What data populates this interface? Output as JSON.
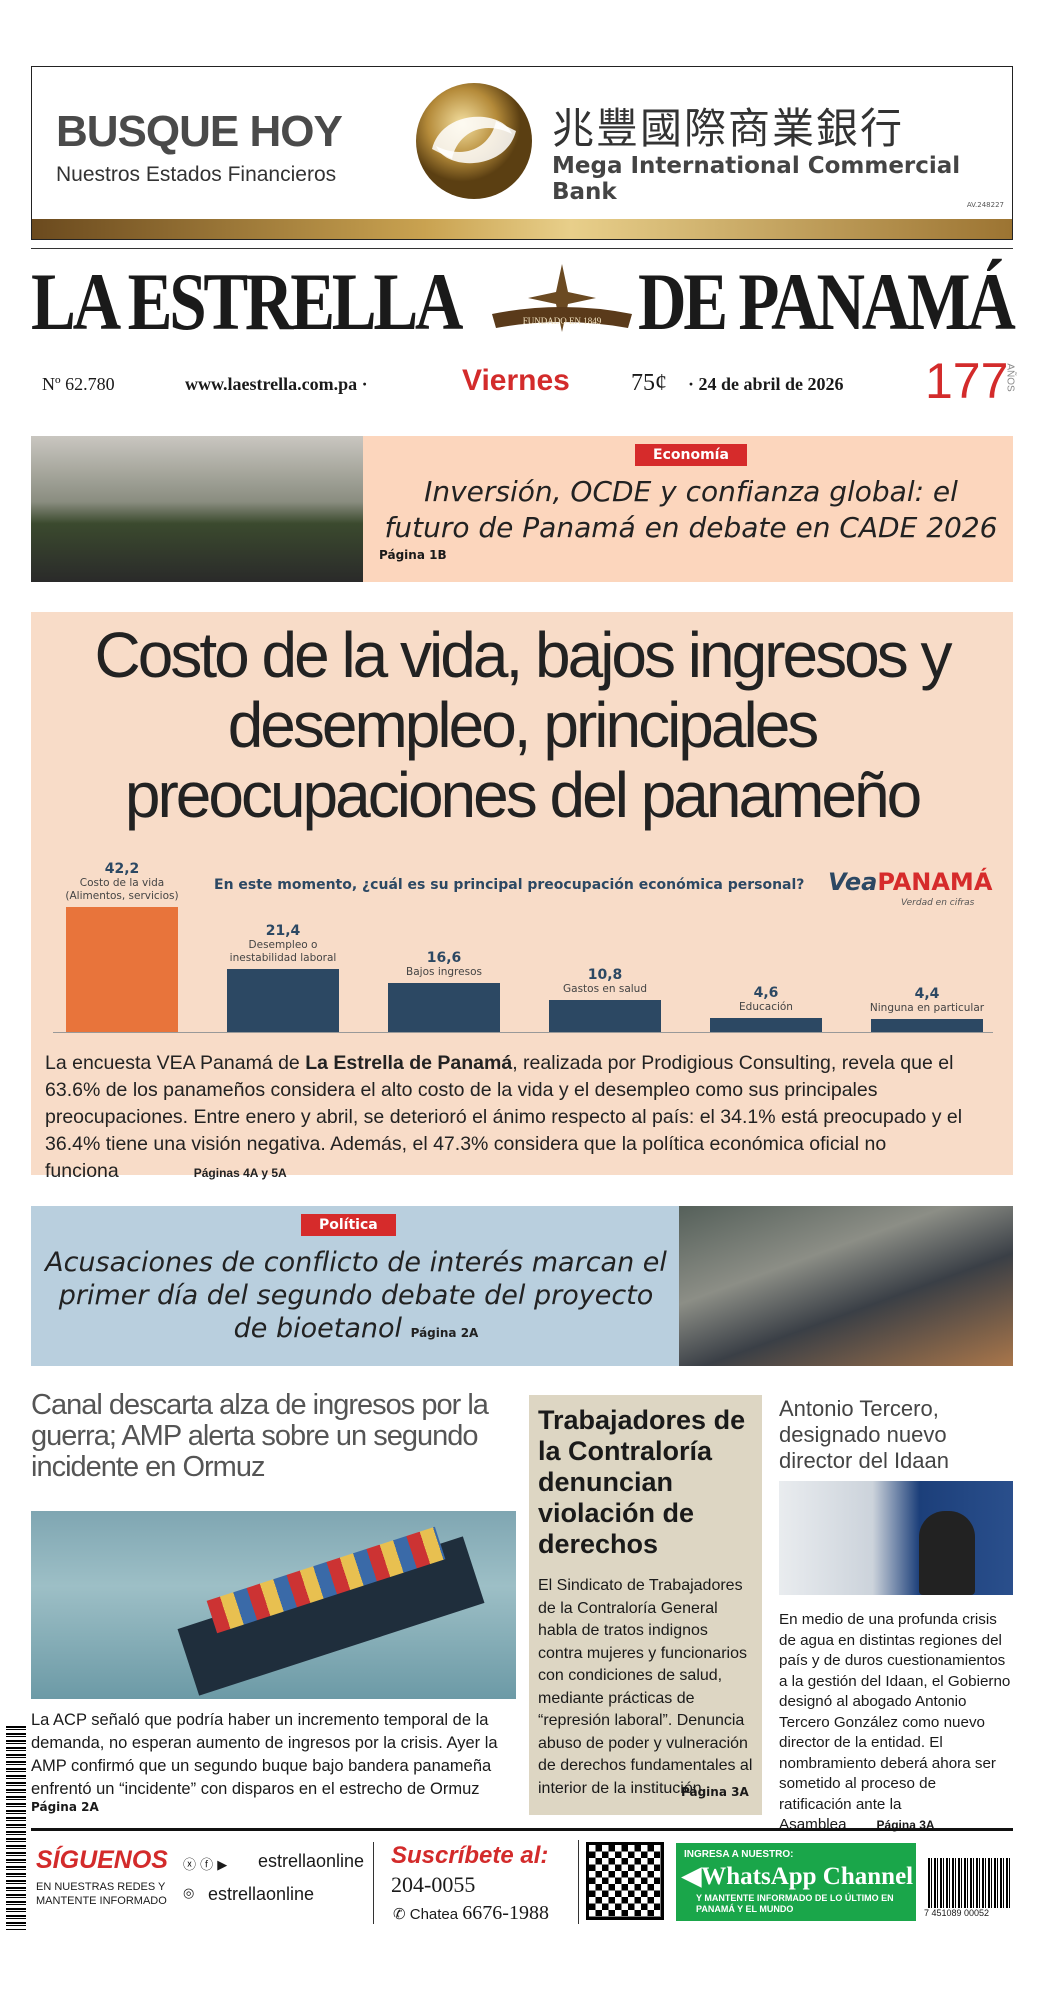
{
  "ad": {
    "title": "BUSQUE HOY",
    "subtitle": "Nuestros Estados Financieros",
    "bank_chinese": "兆豐國際商業銀行",
    "bank_name": "Mega International Commercial Bank",
    "code": "AV.248227"
  },
  "masthead": {
    "left": "LA ESTRELLA",
    "emblem": "FUNDADO EN 1849",
    "right": "DE PANAMÁ"
  },
  "info": {
    "number": "Nº 62.780",
    "website": "www.laestrella.com.pa ·",
    "day": "Viernes",
    "price": "75¢",
    "date": "· 24 de abril de 2026",
    "anniversary": "177",
    "anniversary_unit": "AÑOS"
  },
  "featured": {
    "tag": "Economía",
    "headline": "Inversión, OCDE y confianza global: el futuro de Panamá en debate en CADE 2026",
    "page": "Página 1B"
  },
  "main_story": {
    "headline_lines": [
      "Costo de la vida, bajos ingresos y",
      "desempleo, principales",
      "preocupaciones del panameño"
    ],
    "body": [
      "La encuesta VEA Panamá de ",
      "La Estrella de Panamá",
      ", realizada por Prodigious Consulting, revela que el 63.6% de los panameños considera el alto costo de la vida y el desempleo como sus principales preocupaciones. Entre enero y abril, se deterioró el ánimo respecto al país: el 34.1% está preocupado y el 36.4% tiene una visión negativa. Además, el 47.3% considera que la política económica oficial no funciona"
    ],
    "page": "Páginas 4A y 5A"
  },
  "chart_data": {
    "type": "bar",
    "title": "En este momento, ¿cuál es su principal preocupación económica personal?",
    "source": [
      "Vea",
      "PANAMÁ"
    ],
    "source_tagline": "Verdad en cifras",
    "categories": [
      "Costo de la vida (Alimentos, servicios)",
      "Desempleo o inestabilidad laboral",
      "Bajos ingresos",
      "Gastos en salud",
      "Educación",
      "Ninguna en particular"
    ],
    "values": [
      42.2,
      21.4,
      16.6,
      10.8,
      4.6,
      4.4
    ],
    "value_labels": [
      "42,2",
      "21,4",
      "16,6",
      "10,8",
      "4,6",
      "4,4"
    ],
    "colors": [
      "#e8743b",
      "#2c4863",
      "#2c4863",
      "#2c4863",
      "#2c4863",
      "#2c4863"
    ]
  },
  "politics": {
    "tag": "Política",
    "headline": "Acusaciones de conflicto de interés marcan el primer día del segundo debate del proyecto de bioetanol",
    "page": "Página 2A"
  },
  "columns": [
    {
      "headline": "Canal descarta alza de ingresos por la guerra; AMP alerta sobre un segundo incidente en Ormuz",
      "body": "La ACP señaló que podría haber un incremento temporal de la demanda, no esperan aumento de ingresos por la crisis. Ayer la AMP confirmó que un segundo buque bajo bandera panameña enfrentó un “incidente” con disparos en el estrecho de Ormuz",
      "page": "Página 2A"
    },
    {
      "headline": "Trabajadores de la Contraloría denuncian violación de derechos",
      "body": "El Sindicato de Trabajadores de la Contraloría General habla de tratos indignos contra mujeres y funcionarios con condiciones de salud, mediante prácticas de “represión laboral”. Denuncia abuso de poder y vulneración de derechos fundamentales al interior de la institución",
      "page": "Página 3A"
    },
    {
      "headline": "Antonio Tercero, designado nuevo director del Idaan",
      "body": "En medio de una profunda crisis de agua en distintas regiones del país y de duros cuestionamientos a la gestión del Idaan, el Gobierno designó al abogado Antonio Tercero González como nuevo director de la entidad. El nombramiento deberá ahora ser sometido al proceso de ratificación ante la Asamblea",
      "page": "Página 3A"
    }
  ],
  "footer": {
    "follow": "SÍGUENOS",
    "follow_sub": "EN NUESTRAS REDES Y MANTENTE INFORMADO",
    "handle": "estrellaonline",
    "handle2": "estrellaonline",
    "subscribe": "Suscríbete al:",
    "phone": "204-0055",
    "chat": "Chatea",
    "chat_phone": "6676-1988",
    "wa_pre": "INGRESA A NUESTRO:",
    "wa_title": "WhatsApp Channel",
    "wa_sub": "Y MANTENTE INFORMADO DE LO ÚLTIMO EN PANAMÁ Y EL MUNDO",
    "barcode": "7 451089 00052"
  }
}
